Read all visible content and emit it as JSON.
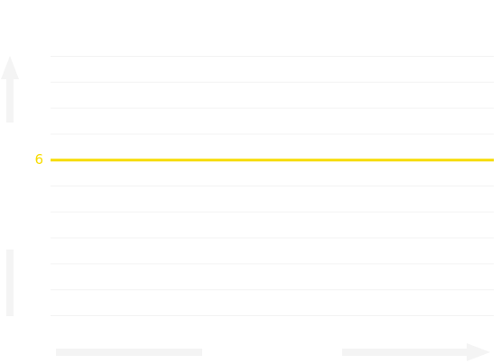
{
  "chart_data": {
    "type": "line",
    "ylim": [
      0,
      10
    ],
    "yticks": [
      6
    ],
    "series": [
      {
        "color": "#f7dc00",
        "values": [
          6,
          6
        ]
      }
    ]
  }
}
